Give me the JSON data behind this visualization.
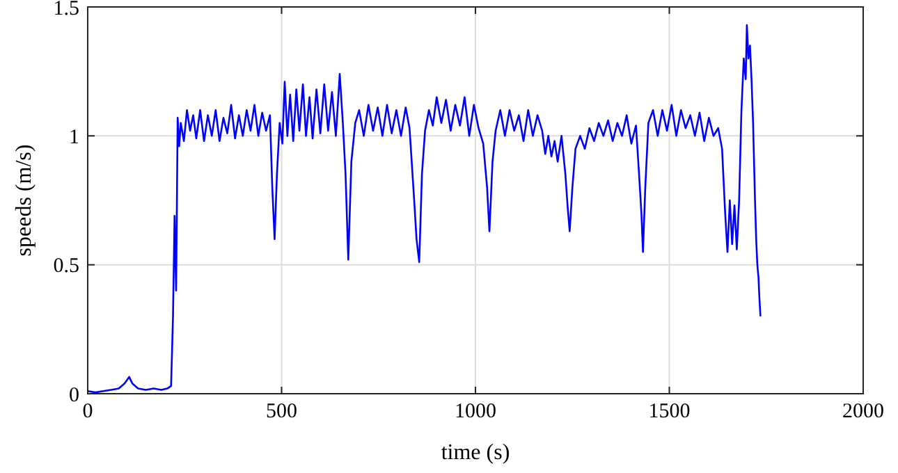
{
  "chart_data": {
    "type": "line",
    "xlabel": "time (s)",
    "ylabel": "speeds (m/s)",
    "xlim": [
      0,
      2000
    ],
    "ylim": [
      0,
      1.5
    ],
    "xticks": [
      0,
      500,
      1000,
      1500,
      2000
    ],
    "yticks": [
      0,
      0.5,
      1,
      1.5
    ],
    "grid": true,
    "series": [
      {
        "color": "#0000ff",
        "x": [
          0,
          20,
          40,
          60,
          80,
          95,
          107,
          115,
          130,
          150,
          170,
          190,
          205,
          215,
          220,
          224,
          228,
          232,
          236,
          240,
          248,
          256,
          264,
          272,
          280,
          290,
          300,
          310,
          320,
          330,
          340,
          350,
          360,
          370,
          380,
          390,
          400,
          410,
          420,
          430,
          440,
          450,
          460,
          470,
          476,
          482,
          488,
          495,
          502,
          508,
          515,
          522,
          530,
          538,
          546,
          555,
          563,
          572,
          580,
          590,
          600,
          610,
          620,
          630,
          640,
          650,
          658,
          665,
          672,
          680,
          690,
          700,
          712,
          724,
          736,
          748,
          760,
          772,
          784,
          796,
          808,
          820,
          830,
          842,
          848,
          855,
          862,
          870,
          880,
          890,
          900,
          912,
          924,
          936,
          948,
          960,
          972,
          984,
          996,
          1008,
          1020,
          1030,
          1036,
          1044,
          1052,
          1064,
          1076,
          1088,
          1100,
          1112,
          1124,
          1136,
          1148,
          1160,
          1172,
          1180,
          1188,
          1196,
          1204,
          1212,
          1222,
          1232,
          1238,
          1243,
          1250,
          1258,
          1270,
          1282,
          1294,
          1306,
          1318,
          1330,
          1342,
          1354,
          1366,
          1378,
          1390,
          1402,
          1414,
          1422,
          1428,
          1432,
          1438,
          1446,
          1458,
          1470,
          1482,
          1494,
          1506,
          1518,
          1530,
          1542,
          1554,
          1566,
          1578,
          1590,
          1602,
          1614,
          1626,
          1636,
          1644,
          1650,
          1656,
          1662,
          1668,
          1674,
          1680,
          1686,
          1692,
          1697,
          1700,
          1704,
          1708,
          1712,
          1716,
          1721,
          1724,
          1727,
          1730,
          1732,
          1735
        ],
        "values": [
          0.01,
          0.005,
          0.01,
          0.015,
          0.02,
          0.04,
          0.065,
          0.04,
          0.02,
          0.015,
          0.02,
          0.015,
          0.02,
          0.03,
          0.3,
          0.69,
          0.4,
          1.07,
          0.96,
          1.05,
          0.98,
          1.1,
          1.02,
          1.08,
          0.99,
          1.1,
          0.98,
          1.08,
          1.0,
          1.1,
          0.98,
          1.07,
          1.01,
          1.12,
          0.99,
          1.08,
          1.0,
          1.1,
          1.02,
          1.12,
          1.0,
          1.09,
          1.02,
          1.08,
          0.8,
          0.6,
          0.85,
          1.05,
          0.97,
          1.21,
          1.0,
          1.16,
          0.98,
          1.18,
          1.02,
          1.2,
          1.0,
          1.15,
          0.99,
          1.18,
          1.01,
          1.2,
          1.02,
          1.17,
          1.0,
          1.24,
          1.05,
          0.85,
          0.52,
          0.9,
          1.05,
          1.1,
          1.0,
          1.12,
          1.02,
          1.11,
          1.0,
          1.12,
          1.01,
          1.1,
          1.0,
          1.11,
          1.03,
          0.75,
          0.6,
          0.51,
          0.85,
          1.02,
          1.1,
          1.04,
          1.15,
          1.05,
          1.14,
          1.02,
          1.12,
          1.04,
          1.15,
          1.0,
          1.12,
          1.03,
          0.97,
          0.8,
          0.63,
          0.9,
          1.02,
          1.1,
          1.0,
          1.1,
          1.02,
          1.08,
          0.98,
          1.1,
          1.0,
          1.08,
          1.02,
          0.93,
          1.0,
          0.92,
          0.98,
          0.9,
          1.0,
          0.85,
          0.72,
          0.63,
          0.8,
          0.95,
          1.0,
          0.95,
          1.03,
          0.98,
          1.05,
          1.0,
          1.06,
          0.98,
          1.05,
          1.0,
          1.08,
          0.97,
          1.04,
          0.85,
          0.7,
          0.55,
          0.8,
          1.05,
          1.1,
          1.0,
          1.1,
          1.02,
          1.12,
          1.0,
          1.1,
          1.03,
          1.08,
          1.0,
          1.09,
          0.98,
          1.07,
          1.0,
          1.03,
          0.95,
          0.7,
          0.55,
          0.75,
          0.58,
          0.73,
          0.56,
          0.75,
          1.1,
          1.3,
          1.22,
          1.43,
          1.3,
          1.35,
          1.22,
          1.05,
          0.75,
          0.6,
          0.5,
          0.45,
          0.38,
          0.3
        ]
      }
    ]
  }
}
